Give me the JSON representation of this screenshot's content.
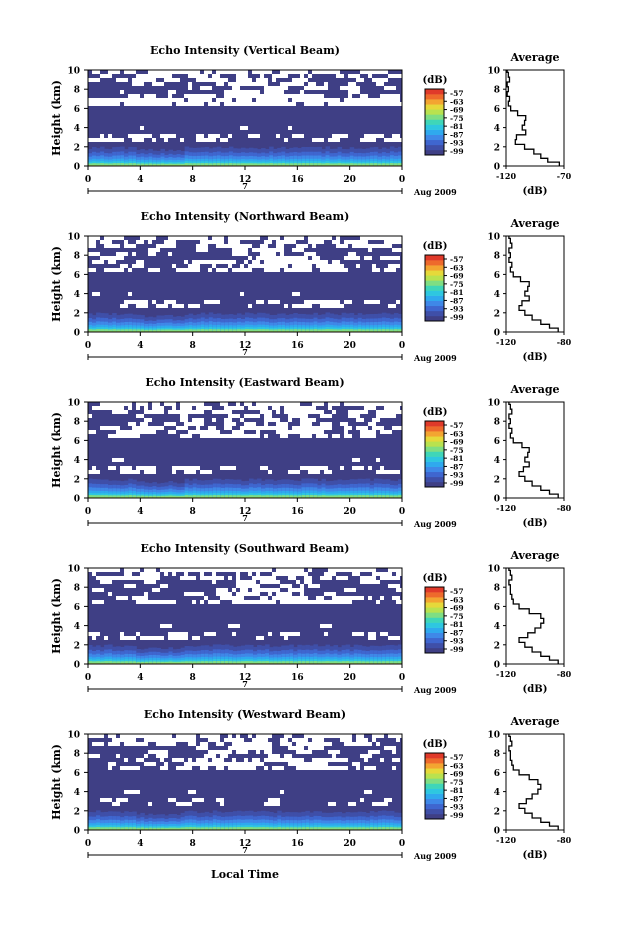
{
  "colors": {
    "background": "#ffffff",
    "radar_bg": "#3f3f85",
    "gap": "#ffffff",
    "colorscale": [
      "#3f3f85",
      "#3f4fa8",
      "#3f66cf",
      "#3f88e8",
      "#2fa9ee",
      "#2ec7e0",
      "#3fd6b8",
      "#7fde83",
      "#b9e24f",
      "#e6d93a",
      "#f3a531",
      "#ee6a2c",
      "#e03a2a"
    ]
  },
  "common": {
    "x_ticks": [
      "0",
      "4",
      "8",
      "12",
      "16",
      "20",
      "0"
    ],
    "y_ticks": [
      "0",
      "2",
      "4",
      "6",
      "8",
      "10"
    ],
    "ylabel": "Height (km)",
    "date_marker": "7",
    "date_label": "Aug 2009",
    "cbar_title": "(dB)",
    "cbar_ticks": [
      "-57",
      "-63",
      "-69",
      "-75",
      "-81",
      "-87",
      "-93",
      "-99"
    ],
    "avg_title": "Average",
    "avg_xlabel": "(dB)",
    "avg_y_ticks": [
      "0",
      "2",
      "4",
      "6",
      "8",
      "10"
    ]
  },
  "xlabel_bottom": "Local Time",
  "chart_data": [
    {
      "type": "heatmap",
      "title": "Echo Intensity (Vertical Beam)",
      "x_range": [
        0,
        24
      ],
      "y_range": [
        0,
        10
      ],
      "avg_xticks": [
        "-120",
        "-70"
      ],
      "avg_xlim": [
        -120,
        -70
      ],
      "avg_profile": {
        "height_km": [
          0.2,
          0.6,
          1,
          1.5,
          2,
          2.5,
          3,
          3.5,
          4,
          4.5,
          5,
          5.5,
          6,
          6.5,
          7,
          7.5,
          8,
          8.5,
          9,
          9.5,
          10
        ],
        "db": [
          -74,
          -84,
          -90,
          -96,
          -104,
          -112,
          -111,
          -103,
          -106,
          -104,
          -103,
          -110,
          -116,
          -118,
          -117,
          -119,
          -118,
          -119,
          -117,
          -118,
          -119
        ]
      }
    },
    {
      "type": "heatmap",
      "title": "Echo Intensity (Northward Beam)",
      "x_range": [
        0,
        24
      ],
      "y_range": [
        0,
        10
      ],
      "avg_xticks": [
        "-120",
        "-80"
      ],
      "avg_xlim": [
        -120,
        -80
      ],
      "avg_profile": {
        "height_km": [
          0.2,
          0.6,
          1,
          1.5,
          2,
          2.5,
          3,
          3.5,
          4,
          4.5,
          5,
          5.5,
          6,
          6.5,
          7,
          7.5,
          8,
          8.5,
          9,
          9.5,
          10
        ],
        "db": [
          -84,
          -90,
          -96,
          -102,
          -107,
          -111,
          -109,
          -104,
          -107,
          -105,
          -104,
          -110,
          -115,
          -117,
          -116,
          -118,
          -117,
          -118,
          -116,
          -117,
          -118
        ]
      }
    },
    {
      "type": "heatmap",
      "title": "Echo Intensity (Eastward Beam)",
      "x_range": [
        0,
        24
      ],
      "y_range": [
        0,
        10
      ],
      "avg_xticks": [
        "-120",
        "-80"
      ],
      "avg_xlim": [
        -120,
        -80
      ],
      "avg_profile": {
        "height_km": [
          0.2,
          0.6,
          1,
          1.5,
          2,
          2.5,
          3,
          3.5,
          4,
          4.5,
          5,
          5.5,
          6,
          6.5,
          7,
          7.5,
          8,
          8.5,
          9,
          9.5,
          10
        ],
        "db": [
          -84,
          -90,
          -96,
          -102,
          -107,
          -111,
          -108,
          -104,
          -107,
          -105,
          -104,
          -109,
          -115,
          -117,
          -116,
          -118,
          -117,
          -118,
          -116,
          -117,
          -118
        ]
      }
    },
    {
      "type": "heatmap",
      "title": "Echo Intensity (Southward Beam)",
      "x_range": [
        0,
        24
      ],
      "y_range": [
        0,
        10
      ],
      "avg_xticks": [
        "-120",
        "-80"
      ],
      "avg_xlim": [
        -120,
        -80
      ],
      "avg_profile": {
        "height_km": [
          0.2,
          0.6,
          1,
          1.5,
          2,
          2.5,
          3,
          3.5,
          4,
          4.5,
          5,
          5.5,
          6,
          6.5,
          7,
          7.5,
          8,
          8.5,
          9,
          9.5,
          10
        ],
        "db": [
          -84,
          -90,
          -96,
          -102,
          -107,
          -111,
          -105,
          -100,
          -96,
          -94,
          -96,
          -104,
          -111,
          -115,
          -116,
          -117,
          -117,
          -118,
          -116,
          -117,
          -118
        ]
      }
    },
    {
      "type": "heatmap",
      "title": "Echo Intensity (Westward Beam)",
      "x_range": [
        0,
        24
      ],
      "y_range": [
        0,
        10
      ],
      "avg_xticks": [
        "-120",
        "-80"
      ],
      "avg_xlim": [
        -120,
        -80
      ],
      "avg_profile": {
        "height_km": [
          0.2,
          0.6,
          1,
          1.5,
          2,
          2.5,
          3,
          3.5,
          4,
          4.5,
          5,
          5.5,
          6,
          6.5,
          7,
          7.5,
          8,
          8.5,
          9,
          9.5,
          10
        ],
        "db": [
          -84,
          -90,
          -96,
          -102,
          -107,
          -111,
          -106,
          -102,
          -98,
          -96,
          -98,
          -104,
          -111,
          -115,
          -116,
          -117,
          -117,
          -118,
          -116,
          -117,
          -118
        ]
      }
    }
  ]
}
